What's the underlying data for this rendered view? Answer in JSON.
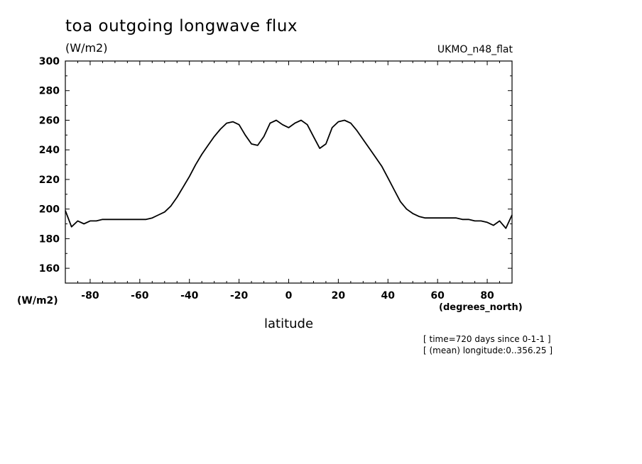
{
  "header": {
    "title": "toa outgoing longwave flux",
    "units": "(W/m2)",
    "dataset": "UKMO_n48_flat"
  },
  "axes": {
    "y_units_label": "(W/m2)",
    "x_units_label": "(degrees_north)",
    "x_label": "latitude"
  },
  "notes": {
    "time": "[ time=720 days since 0-1-1 ]",
    "longitude": "[ (mean) longitude:0..356.25 ]"
  },
  "chart_data": {
    "type": "line",
    "title": "toa outgoing longwave flux",
    "xlabel": "latitude",
    "ylabel": "(W/m2)",
    "xlim": [
      -90,
      90
    ],
    "ylim": [
      150,
      300
    ],
    "xticks": [
      -80,
      -60,
      -40,
      -20,
      0,
      20,
      40,
      60,
      80
    ],
    "xtick_labels": [
      "-80",
      "-60",
      "-40",
      "-20",
      "0",
      "20",
      "40",
      "60",
      "80"
    ],
    "yticks": [
      160,
      180,
      200,
      220,
      240,
      260,
      280,
      300
    ],
    "ytick_labels": [
      "160",
      "180",
      "200",
      "220",
      "240",
      "260",
      "280",
      "300"
    ],
    "grid": false,
    "line_color": "#000000",
    "series": [
      {
        "x": [
          -90,
          -87.5,
          -85,
          -82.5,
          -80,
          -77.5,
          -75,
          -72.5,
          -70,
          -67.5,
          -65,
          -62.5,
          -60,
          -57.5,
          -55,
          -52.5,
          -50,
          -47.5,
          -45,
          -42.5,
          -40,
          -37.5,
          -35,
          -32.5,
          -30,
          -27.5,
          -25,
          -22.5,
          -20,
          -17.5,
          -15,
          -12.5,
          -10,
          -7.5,
          -5,
          -2.5,
          0,
          2.5,
          5,
          7.5,
          10,
          12.5,
          15,
          17.5,
          20,
          22.5,
          25,
          27.5,
          30,
          32.5,
          35,
          37.5,
          40,
          42.5,
          45,
          47.5,
          50,
          52.5,
          55,
          57.5,
          60,
          62.5,
          65,
          67.5,
          70,
          72.5,
          75,
          77.5,
          80,
          82.5,
          85,
          87.5,
          90
        ],
        "y": [
          199,
          188,
          192,
          190,
          192,
          192,
          193,
          193,
          193,
          193,
          193,
          193,
          193,
          193,
          194,
          196,
          198,
          202,
          208,
          215,
          222,
          230,
          237,
          243,
          249,
          254,
          258,
          259,
          257,
          250,
          244,
          243,
          249,
          258,
          260,
          257,
          255,
          258,
          260,
          257,
          249,
          241,
          244,
          255,
          259,
          260,
          258,
          253,
          247,
          241,
          235,
          229,
          221,
          213,
          205,
          200,
          197,
          195,
          194,
          194,
          194,
          194,
          194,
          194,
          193,
          193,
          192,
          192,
          191,
          189,
          192,
          187,
          196
        ]
      }
    ]
  }
}
